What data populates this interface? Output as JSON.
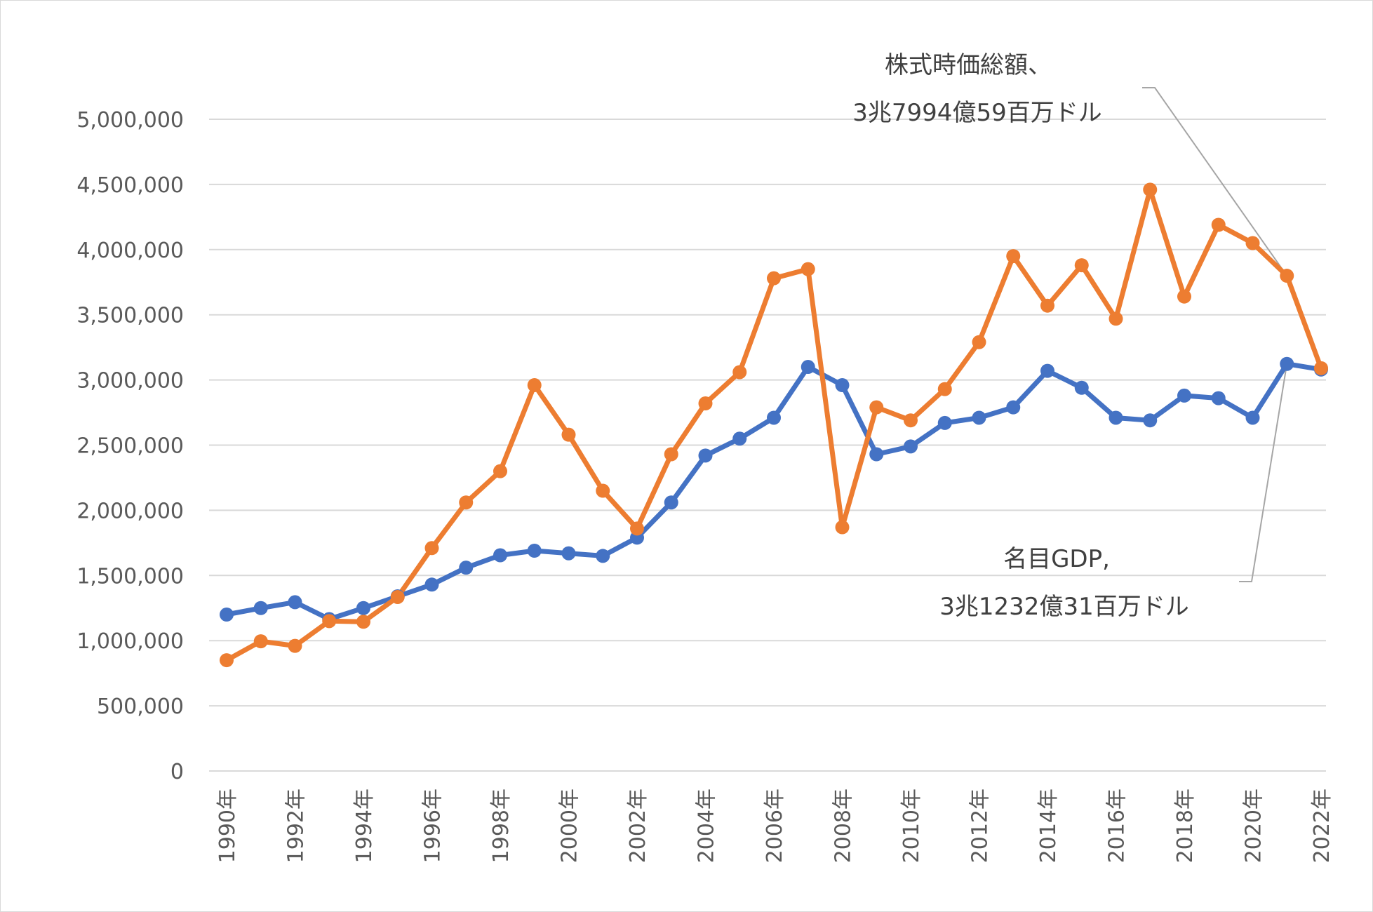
{
  "chart_data": {
    "type": "line",
    "title": "",
    "xlabel": "",
    "ylabel": "",
    "ylim": [
      0,
      5000000
    ],
    "yticks": [
      0,
      500000,
      1000000,
      1500000,
      2000000,
      2500000,
      3000000,
      3500000,
      4000000,
      4500000,
      5000000
    ],
    "ytick_labels": [
      "0",
      "500,000",
      "1,000,000",
      "1,500,000",
      "2,000,000",
      "2,500,000",
      "3,000,000",
      "3,500,000",
      "4,000,000",
      "4,500,000",
      "5,000,000"
    ],
    "x": [
      1990,
      1991,
      1992,
      1993,
      1994,
      1995,
      1996,
      1997,
      1998,
      1999,
      2000,
      2001,
      2002,
      2003,
      2004,
      2005,
      2006,
      2007,
      2008,
      2009,
      2010,
      2011,
      2012,
      2013,
      2014,
      2015,
      2016,
      2017,
      2018,
      2019,
      2020,
      2021,
      2022
    ],
    "xtick_labels": [
      "1990年",
      "1992年",
      "1994年",
      "1996年",
      "1998年",
      "2000年",
      "2002年",
      "2004年",
      "2006年",
      "2008年",
      "2010年",
      "2012年",
      "2014年",
      "2016年",
      "2018年",
      "2020年",
      "2022年"
    ],
    "grid": true,
    "legend": "none",
    "series": [
      {
        "color": "#4472c4",
        "values": [
          1200000,
          1250000,
          1295000,
          1165000,
          1250000,
          1340000,
          1430000,
          1560000,
          1655000,
          1690000,
          1670000,
          1650000,
          1790000,
          2060000,
          2420000,
          2550000,
          2710000,
          3100000,
          2960000,
          2430000,
          2490000,
          2670000,
          2710000,
          2790000,
          3070000,
          2940000,
          2710000,
          2690000,
          2880000,
          2860000,
          2710000,
          3123231,
          3080000
        ]
      },
      {
        "color": "#ed7d31",
        "values": [
          850000,
          995000,
          960000,
          1150000,
          1145000,
          1335000,
          1710000,
          2060000,
          2300000,
          2960000,
          2580000,
          2150000,
          1860000,
          2430000,
          2820000,
          3060000,
          3780000,
          3850000,
          1870000,
          2790000,
          2690000,
          2930000,
          3290000,
          3950000,
          3570000,
          3880000,
          3470000,
          4460000,
          3640000,
          4190000,
          4050000,
          3799459,
          3090000
        ]
      }
    ],
    "annotations": [
      {
        "lines": [
          "株式時価総額、",
          "3兆7994億59百万ドル"
        ]
      },
      {
        "lines": [
          "名目GDP,",
          "3兆1232億31百万ドル"
        ]
      }
    ]
  }
}
